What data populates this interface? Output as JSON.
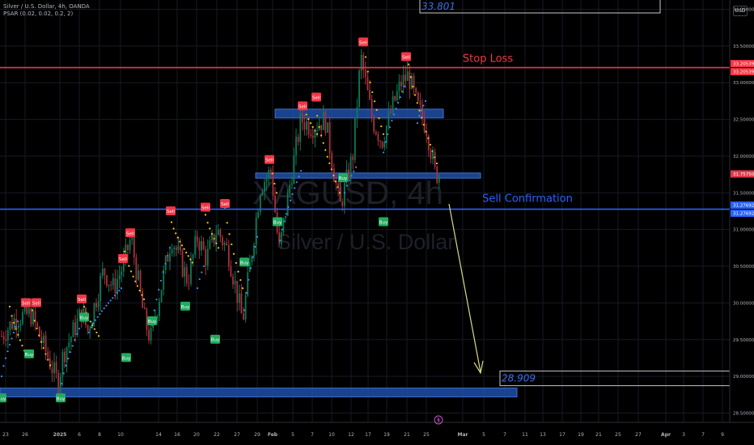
{
  "legend": {
    "line1": "Silver / U.S. Dollar, 4h, OANDA",
    "line2": "PSAR (0.02, 0.02, 0.2, 2)"
  },
  "currency_button": "USD",
  "watermark": {
    "symbol": "XAGUSD, 4h",
    "name": "Silver / U.S. Dollar"
  },
  "colors": {
    "background": "#000000",
    "grid": "#161a23",
    "bull_candle": "#0f7a55",
    "bear_candle": "#a8323c",
    "stop_line": "#f23645",
    "confirm_line": "#2962ff",
    "zone_fill": "#1e4fa8",
    "psar_down": "#f7c518",
    "psar_up": "#3c8cf0",
    "sell_tag": "#f23645",
    "buy_tag": "#22ab60",
    "arrow": "#d6d688",
    "axis_text": "#b2b5be"
  },
  "chart_data": {
    "type": "candlestick",
    "symbol": "Silver / U.S. Dollar",
    "interval": "4h",
    "ylim": [
      28.35,
      34.0
    ],
    "y_ticks": [
      "34.00000",
      "33.50000",
      "33.00000",
      "32.50000",
      "32.00000",
      "31.50000",
      "31.00000",
      "30.50000",
      "30.00000",
      "29.50000",
      "29.00000",
      "28.50000"
    ],
    "x_ticks": [
      "23",
      "26",
      "2025",
      "6",
      "8",
      "10",
      "14",
      "16",
      "20",
      "22",
      "27",
      "29",
      "Feb",
      "5",
      "7",
      "10",
      "12",
      "17",
      "19",
      "21",
      "25",
      "Mar",
      "5",
      "7",
      "11",
      "13",
      "17",
      "19",
      "21",
      "25",
      "27",
      "Apr",
      "3",
      "7",
      "9"
    ],
    "price_levels": [
      {
        "label": "Stop Loss",
        "price": 33.20539,
        "axis_label": "33.20539"
      },
      {
        "label": "Sell Confirmation",
        "price": 31.27692,
        "axis_label": "31.27692"
      }
    ],
    "price_axis_badges": [
      {
        "text": "33.20539",
        "price": 33.20539,
        "kind": "stop"
      },
      {
        "text": "33.20539",
        "price": 33.20539,
        "kind": "stop"
      },
      {
        "text": "31.75750",
        "price": 31.7575,
        "kind": "last"
      },
      {
        "text": "31.27692",
        "price": 31.27692,
        "kind": "confirm"
      },
      {
        "text": "31.27692",
        "price": 31.27692,
        "kind": "confirm"
      }
    ],
    "target_labels": [
      {
        "text": "33.801",
        "price": 34.05
      },
      {
        "text": "28.909",
        "price": 28.95
      }
    ],
    "zones": [
      {
        "from": 32.52,
        "to": 32.64
      },
      {
        "from": 31.7,
        "to": 31.77
      },
      {
        "from": 28.72,
        "to": 28.84
      }
    ],
    "signals_sell": [
      {
        "text": "Sell",
        "price": 29.9
      },
      {
        "text": "Sell",
        "price": 29.9
      },
      {
        "text": "Sell",
        "price": 29.95
      },
      {
        "text": "Sell",
        "price": 30.5
      },
      {
        "text": "Sell",
        "price": 30.85
      },
      {
        "text": "Sell",
        "price": 31.15
      },
      {
        "text": "Sell",
        "price": 31.2
      },
      {
        "text": "Sell",
        "price": 31.25
      },
      {
        "text": "Sell",
        "price": 31.85
      },
      {
        "text": "Sell",
        "price": 32.58
      },
      {
        "text": "Sell",
        "price": 32.7
      },
      {
        "text": "Sell",
        "price": 33.45
      },
      {
        "text": "Sell",
        "price": 33.25
      }
    ],
    "signals_buy": [
      {
        "text": "Buy",
        "price": 28.8
      },
      {
        "text": "Buy",
        "price": 29.4
      },
      {
        "text": "Buy",
        "price": 28.8
      },
      {
        "text": "Buy",
        "price": 29.9
      },
      {
        "text": "Buy",
        "price": 29.35
      },
      {
        "text": "Buy",
        "price": 29.85
      },
      {
        "text": "Buy",
        "price": 30.05
      },
      {
        "text": "Buy",
        "price": 29.6
      },
      {
        "text": "Buy",
        "price": 30.65
      },
      {
        "text": "Buy",
        "price": 31.2
      },
      {
        "text": "Buy",
        "price": 31.8
      },
      {
        "text": "Buy",
        "price": 31.2
      }
    ]
  }
}
